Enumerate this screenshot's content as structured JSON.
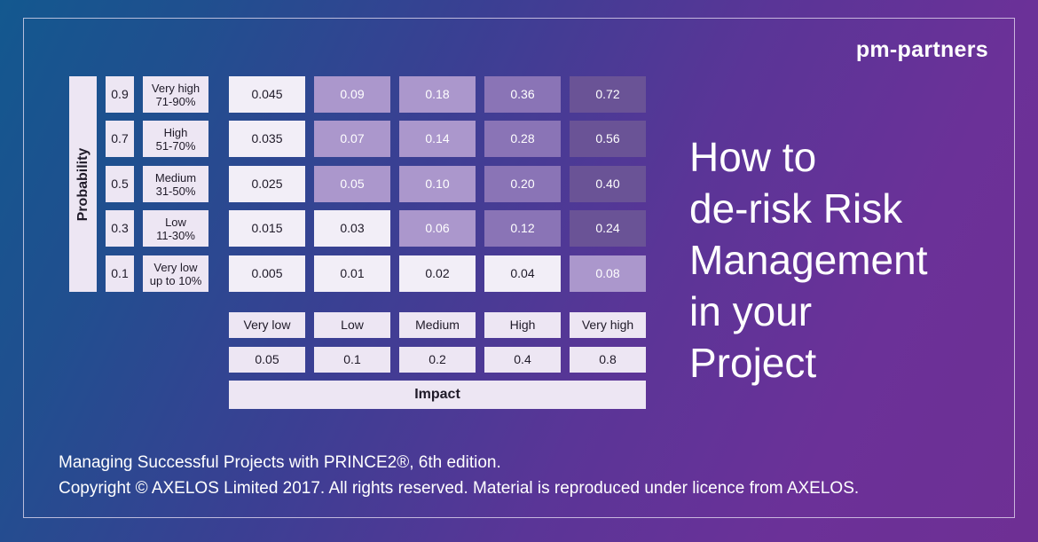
{
  "brand": "pm-partners",
  "headline": "How to\nde-risk Risk\nManagement\nin your\nProject",
  "axis": {
    "probability_label": "Probability",
    "impact_label": "Impact"
  },
  "probability_rows": [
    {
      "value": "0.9",
      "label": "Very high\n71-90%"
    },
    {
      "value": "0.7",
      "label": "High\n51-70%"
    },
    {
      "value": "0.5",
      "label": "Medium\n31-50%"
    },
    {
      "value": "0.3",
      "label": "Low\n11-30%"
    },
    {
      "value": "0.1",
      "label": "Very low\nup to 10%"
    }
  ],
  "impact_columns": [
    {
      "label": "Very low",
      "value": "0.05"
    },
    {
      "label": "Low",
      "value": "0.1"
    },
    {
      "label": "Medium",
      "value": "0.2"
    },
    {
      "label": "High",
      "value": "0.4"
    },
    {
      "label": "Very high",
      "value": "0.8"
    }
  ],
  "matrix": [
    [
      "0.045",
      "0.09",
      "0.18",
      "0.36",
      "0.72"
    ],
    [
      "0.035",
      "0.07",
      "0.14",
      "0.28",
      "0.56"
    ],
    [
      "0.025",
      "0.05",
      "0.10",
      "0.20",
      "0.40"
    ],
    [
      "0.015",
      "0.03",
      "0.06",
      "0.12",
      "0.24"
    ],
    [
      "0.005",
      "0.01",
      "0.02",
      "0.04",
      "0.08"
    ]
  ],
  "colors": {
    "low_risk": "#f2eef7",
    "medium_risk": "#ab97cc",
    "high_risk": "#8a74b6",
    "very_high_risk": "#6a5396"
  },
  "footer": {
    "line1": "Managing Successful Projects with PRINCE2®, 6th edition.",
    "line2": "Copyright © AXELOS Limited 2017. All rights reserved. Material is reproduced under licence from AXELOS."
  }
}
